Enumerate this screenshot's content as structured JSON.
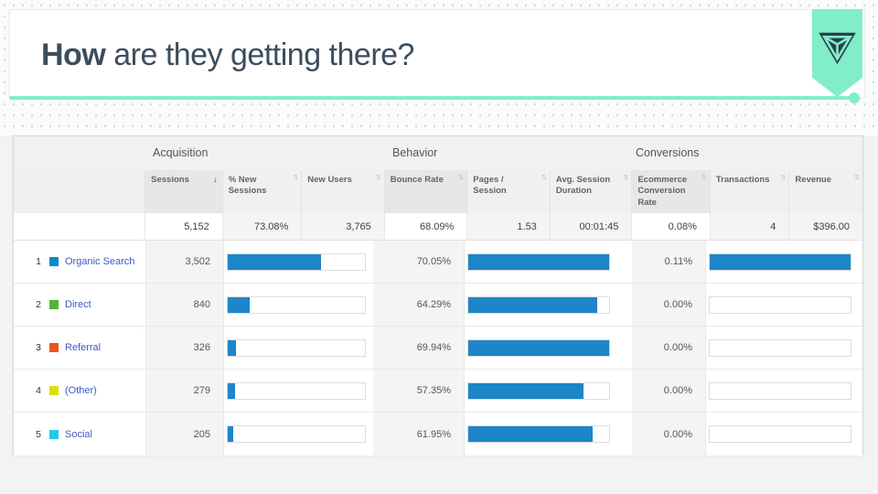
{
  "slide": {
    "title_bold": "How",
    "title_rest": " are they getting there?",
    "colors": {
      "accent_mint": "#80eec6",
      "title_navy": "#3b4d5e",
      "logo_navy": "#2c3e50"
    }
  },
  "icons": {
    "logo": "pennant-trident",
    "sort_desc": "↓",
    "sort_both": "⇅"
  },
  "analytics": {
    "group_headers": [
      {
        "label": "Acquisition"
      },
      {
        "label": "Behavior"
      },
      {
        "label": "Conversions"
      }
    ],
    "columns": [
      {
        "label": "Sessions",
        "sorted": "desc"
      },
      {
        "label": "% New Sessions"
      },
      {
        "label": "New Users"
      },
      {
        "label": "Bounce Rate"
      },
      {
        "label": "Pages / Session"
      },
      {
        "label": "Avg. Session Duration"
      },
      {
        "label": "Ecommerce Conversion Rate"
      },
      {
        "label": "Transactions"
      },
      {
        "label": "Revenue"
      }
    ],
    "totals": {
      "sessions": "5,152",
      "new_sessions": "73.08%",
      "new_users": "3,765",
      "bounce": "68.09%",
      "pages_session": "1.53",
      "avg_duration": "00:01:45",
      "ecomm_rate": "0.08%",
      "transactions": "4",
      "revenue": "$396.00"
    },
    "rows": [
      {
        "rank": "1",
        "channel": "Organic Search",
        "swatch": "#058dc7",
        "sessions": "3,502",
        "sessions_bar": 68,
        "bounce": "70.05%",
        "bounce_bar": 100,
        "ecomm": "0.11%",
        "ecomm_bar": 100
      },
      {
        "rank": "2",
        "channel": "Direct",
        "swatch": "#50b432",
        "sessions": "840",
        "sessions_bar": 16.3,
        "bounce": "64.29%",
        "bounce_bar": 91.8,
        "ecomm": "0.00%",
        "ecomm_bar": 0
      },
      {
        "rank": "3",
        "channel": "Referral",
        "swatch": "#ed561b",
        "sessions": "326",
        "sessions_bar": 6.3,
        "bounce": "69.94%",
        "bounce_bar": 99.8,
        "ecomm": "0.00%",
        "ecomm_bar": 0
      },
      {
        "rank": "4",
        "channel": "(Other)",
        "swatch": "#dddf00",
        "sessions": "279",
        "sessions_bar": 5.4,
        "bounce": "57.35%",
        "bounce_bar": 81.9,
        "ecomm": "0.00%",
        "ecomm_bar": 0
      },
      {
        "rank": "5",
        "channel": "Social",
        "swatch": "#24cbe5",
        "sessions": "205",
        "sessions_bar": 4.0,
        "bounce": "61.95%",
        "bounce_bar": 88.4,
        "ecomm": "0.00%",
        "ecomm_bar": 0
      }
    ],
    "colors": {
      "bar_blue": "#1d86c8",
      "link_blue": "#3e5cc4"
    }
  }
}
